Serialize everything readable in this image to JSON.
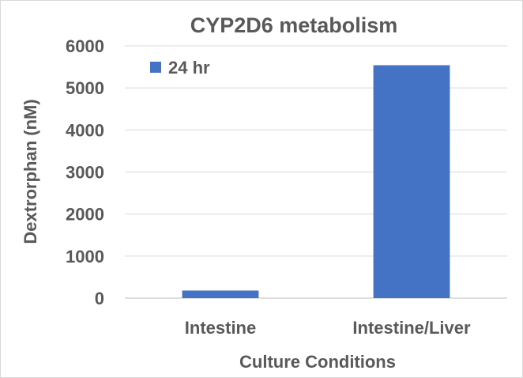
{
  "chart_data": {
    "type": "bar",
    "title": "CYP2D6 metabolism",
    "xlabel": "Culture Conditions",
    "ylabel": "Dextrorphan (nM)",
    "categories": [
      "Intestine",
      "Intestine/Liver"
    ],
    "series": [
      {
        "name": "24 hr",
        "values": [
          180,
          5540
        ],
        "color": "#4472c4"
      }
    ],
    "ylim": [
      0,
      6000
    ],
    "yticks": [
      "0",
      "1000",
      "2000",
      "3000",
      "4000",
      "5000",
      "6000"
    ],
    "grid": true,
    "legend_position": "top-left"
  }
}
